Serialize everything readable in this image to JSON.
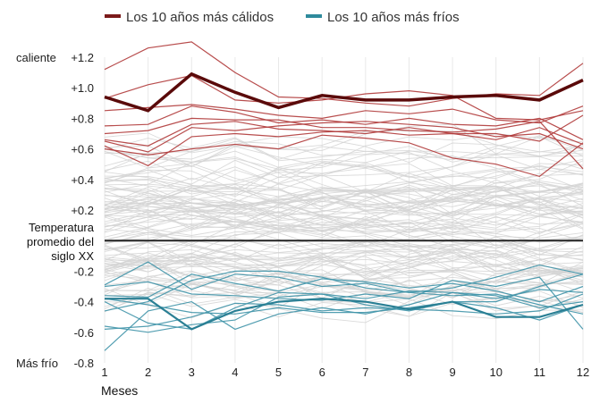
{
  "chart_data": {
    "type": "line",
    "xlabel": "Meses",
    "x": [
      1,
      2,
      3,
      4,
      5,
      6,
      7,
      8,
      9,
      10,
      11,
      12
    ],
    "ylim": [
      -0.8,
      1.2
    ],
    "y_ticks": [
      {
        "value": 1.2,
        "label": "+1.2"
      },
      {
        "value": 1.0,
        "label": "+1.0"
      },
      {
        "value": 0.8,
        "label": "+0.8"
      },
      {
        "value": 0.6,
        "label": "+0.6"
      },
      {
        "value": 0.4,
        "label": "+0.4"
      },
      {
        "value": 0.2,
        "label": "+0.2"
      },
      {
        "value": -0.2,
        "label": "-0.2"
      },
      {
        "value": -0.4,
        "label": "-0.4"
      },
      {
        "value": -0.6,
        "label": "-0.6"
      },
      {
        "value": -0.8,
        "label": "-0.8"
      }
    ],
    "y_side_labels": {
      "top": "caliente",
      "bottom": "Más frío"
    },
    "reference_line": {
      "value": 0,
      "label_lines": [
        "Temperatura",
        "promedio del",
        "siglo XX"
      ]
    },
    "grid": "vertical",
    "legend_position": "top",
    "legend": [
      {
        "name": "Los 10 años más cálidos",
        "color": "#7b1a1a"
      },
      {
        "name": "Los 10 años más fríos",
        "color": "#2e8a9c"
      }
    ],
    "colors": {
      "warm": "#b03a3a",
      "warm_highlight": "#5a0a0a",
      "cold": "#3f93a8",
      "cold_highlight": "#2a7f94",
      "background_lines": "#d4d4d4",
      "reference": "#222222"
    },
    "highlight_warm": [
      0.94,
      0.85,
      1.09,
      0.97,
      0.87,
      0.95,
      0.92,
      0.92,
      0.94,
      0.95,
      0.92,
      1.05
    ],
    "highlight_cold": [
      -0.38,
      -0.38,
      -0.58,
      -0.46,
      -0.4,
      -0.38,
      -0.4,
      -0.45,
      -0.4,
      -0.5,
      -0.5,
      -0.42
    ],
    "warm_years": [
      [
        1.12,
        1.26,
        1.3,
        1.1,
        0.94,
        0.93,
        0.9,
        0.88,
        0.93,
        0.96,
        0.95,
        1.16
      ],
      [
        0.93,
        1.02,
        1.08,
        0.92,
        0.9,
        0.92,
        0.96,
        0.98,
        0.95,
        0.8,
        0.79,
        0.85
      ],
      [
        0.85,
        0.87,
        0.89,
        0.86,
        0.82,
        0.8,
        0.85,
        0.83,
        0.86,
        0.79,
        0.77,
        0.88
      ],
      [
        0.75,
        0.76,
        0.88,
        0.84,
        0.77,
        0.79,
        0.76,
        0.8,
        0.76,
        0.75,
        0.8,
        0.66
      ],
      [
        0.62,
        0.49,
        0.68,
        0.7,
        0.68,
        0.71,
        0.72,
        0.69,
        0.7,
        0.66,
        0.74,
        0.63
      ],
      [
        0.65,
        0.58,
        0.74,
        0.72,
        0.75,
        0.77,
        0.78,
        0.76,
        0.74,
        0.68,
        0.7,
        0.6
      ],
      [
        0.6,
        0.56,
        0.6,
        0.63,
        0.6,
        0.69,
        0.67,
        0.64,
        0.54,
        0.5,
        0.42,
        0.64
      ],
      [
        0.66,
        0.62,
        0.76,
        0.78,
        0.73,
        0.72,
        0.7,
        0.74,
        0.7,
        0.7,
        0.65,
        0.82
      ],
      [
        0.7,
        0.72,
        0.8,
        0.79,
        0.79,
        0.74,
        0.74,
        0.72,
        0.71,
        0.73,
        0.78,
        0.47
      ]
    ],
    "cold_years": [
      [
        -0.29,
        -0.14,
        -0.32,
        -0.22,
        -0.24,
        -0.3,
        -0.28,
        -0.34,
        -0.31,
        -0.24,
        -0.16,
        -0.22
      ],
      [
        -0.36,
        -0.37,
        -0.22,
        -0.28,
        -0.33,
        -0.25,
        -0.27,
        -0.31,
        -0.28,
        -0.33,
        -0.4,
        -0.3
      ],
      [
        -0.58,
        -0.56,
        -0.5,
        -0.41,
        -0.42,
        -0.46,
        -0.44,
        -0.45,
        -0.46,
        -0.48,
        -0.46,
        -0.35
      ],
      [
        -0.72,
        -0.46,
        -0.4,
        -0.58,
        -0.48,
        -0.44,
        -0.48,
        -0.42,
        -0.34,
        -0.36,
        -0.44,
        -0.4
      ],
      [
        -0.56,
        -0.6,
        -0.55,
        -0.52,
        -0.37,
        -0.35,
        -0.38,
        -0.33,
        -0.34,
        -0.38,
        -0.32,
        -0.34
      ],
      [
        -0.46,
        -0.4,
        -0.26,
        -0.2,
        -0.2,
        -0.24,
        -0.31,
        -0.34,
        -0.36,
        -0.35,
        -0.42,
        -0.48
      ],
      [
        -0.3,
        -0.27,
        -0.35,
        -0.36,
        -0.38,
        -0.39,
        -0.35,
        -0.38,
        -0.26,
        -0.3,
        -0.24,
        -0.58
      ],
      [
        -0.4,
        -0.54,
        -0.58,
        -0.44,
        -0.34,
        -0.35,
        -0.42,
        -0.46,
        -0.4,
        -0.44,
        -0.52,
        -0.42
      ],
      [
        -0.38,
        -0.42,
        -0.47,
        -0.48,
        -0.44,
        -0.47,
        -0.47,
        -0.44,
        -0.4,
        -0.4,
        -0.3,
        -0.22
      ]
    ]
  }
}
